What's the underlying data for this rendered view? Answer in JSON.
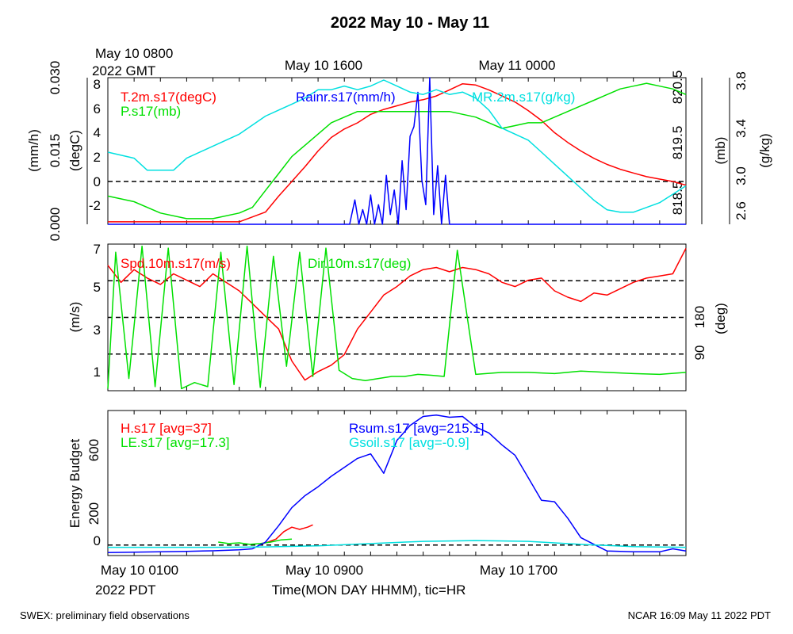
{
  "title": "2022 May 10 - May 11",
  "footer_left": "SWEX: preliminary field observations",
  "footer_right": "NCAR 16:09 May 11 2022 PDT",
  "xaxis": {
    "label": "Time(MON DAY HHMM), tic=HR",
    "bottom_ticks": [
      "May 10 0100",
      "May 10 0900",
      "May 10 1700"
    ],
    "bottom_zone": "2022 PDT",
    "top_ticks": [
      "May 10 0800",
      "May 10 1600",
      "May 11 0000"
    ],
    "top_zone": "2022 GMT",
    "range_hours": [
      0,
      22
    ]
  },
  "chart_data": [
    {
      "type": "line",
      "panel": "meteorology",
      "axes": {
        "left_outer": {
          "label": "(mm/h)",
          "ticks": [
            "0.000",
            "0.015",
            "0.030"
          ],
          "range": [
            0,
            0.03
          ]
        },
        "left_inner": {
          "label": "(degC)",
          "ticks": [
            "-2",
            "0",
            "2",
            "4",
            "6",
            "8"
          ],
          "range": [
            -3.5,
            8.5
          ]
        },
        "right_inner": {
          "label": "(mb)",
          "ticks": [
            "818.5",
            "819.5",
            "820.5"
          ],
          "range": [
            818.1,
            820.7
          ]
        },
        "right_outer": {
          "label": "(g/kg)",
          "ticks": [
            "2.6",
            "3.0",
            "3.4",
            "3.8"
          ],
          "range": [
            2.6,
            3.82
          ]
        }
      },
      "reference_lines": [
        {
          "axis": "left_inner",
          "value": 0
        }
      ],
      "series": [
        {
          "name": "T.2m.s17(degC)",
          "color": "#ff0000",
          "axis": "left_inner",
          "x": [
            0,
            1,
            2,
            3,
            4,
            5,
            6,
            6.5,
            7,
            7.5,
            8,
            8.5,
            9,
            9.5,
            10,
            10.5,
            11,
            11.5,
            12,
            12.5,
            13,
            13.5,
            14,
            14.5,
            15,
            15.5,
            16,
            16.5,
            17,
            17.5,
            18,
            18.5,
            19,
            19.5,
            20,
            20.5,
            21,
            21.5,
            22
          ],
          "y": [
            -3.3,
            -3.3,
            -3.3,
            -3.3,
            -3.3,
            -3.3,
            -2.5,
            -1.2,
            0.0,
            1.2,
            2.5,
            3.6,
            4.3,
            4.8,
            5.5,
            5.9,
            6.2,
            6.5,
            6.7,
            7.0,
            7.5,
            8.0,
            7.9,
            7.5,
            7.0,
            6.5,
            5.8,
            5.0,
            4.0,
            3.2,
            2.5,
            1.9,
            1.4,
            1.0,
            0.7,
            0.4,
            0.2,
            0.0,
            -0.3
          ]
        },
        {
          "name": "P.s17(mb)",
          "color": "#00e000",
          "axis": "right_inner",
          "x": [
            0,
            1,
            2,
            3,
            4,
            5,
            5.5,
            6,
            6.5,
            7,
            7.5,
            8,
            8.5,
            9,
            9.5,
            10,
            10.5,
            11,
            11.5,
            12,
            13,
            14,
            14.5,
            15,
            15.5,
            16,
            16.5,
            17,
            17.5,
            18,
            18.5,
            19,
            19.5,
            20,
            20.5,
            21,
            21.5,
            22
          ],
          "y": [
            818.6,
            818.5,
            818.3,
            818.2,
            818.2,
            818.3,
            818.4,
            818.7,
            819.0,
            819.3,
            819.5,
            819.7,
            819.9,
            820.0,
            820.1,
            820.1,
            820.1,
            820.1,
            820.1,
            820.1,
            820.1,
            820.0,
            819.9,
            819.8,
            819.85,
            819.9,
            819.9,
            820.0,
            820.1,
            820.2,
            820.3,
            820.4,
            820.5,
            820.55,
            820.6,
            820.55,
            820.5,
            820.4
          ]
        },
        {
          "name": "Rainr.s17(mm/h)",
          "color": "#0000ff",
          "axis": "left_outer",
          "x": [
            0,
            9.2,
            9.4,
            9.55,
            9.7,
            9.85,
            10.0,
            10.15,
            10.3,
            10.45,
            10.6,
            10.75,
            10.9,
            11.05,
            11.2,
            11.35,
            11.5,
            11.65,
            11.8,
            11.95,
            12.1,
            12.25,
            12.4,
            12.55,
            12.7,
            12.85,
            13.0,
            13.5,
            22
          ],
          "y": [
            0,
            0,
            0.005,
            0,
            0.003,
            0,
            0.006,
            0,
            0.004,
            0,
            0.01,
            0.002,
            0.007,
            0,
            0.013,
            0.003,
            0.018,
            0.02,
            0.027,
            0.009,
            0.004,
            0.03,
            0.002,
            0.012,
            0,
            0.01,
            0,
            0,
            0
          ]
        },
        {
          "name": "MR.2m.s17(g/kg)",
          "color": "#00e0e0",
          "axis": "right_outer",
          "x": [
            0,
            1,
            1.5,
            2,
            2.5,
            3,
            4,
            5,
            6,
            6.5,
            7,
            7.5,
            8,
            8.5,
            9,
            9.5,
            10,
            10.5,
            11,
            11.5,
            12,
            12.5,
            13,
            13.5,
            14,
            14.5,
            15,
            15.5,
            16,
            16.5,
            17,
            17.5,
            18,
            18.5,
            19,
            19.5,
            20,
            21,
            22
          ],
          "y": [
            3.2,
            3.15,
            3.05,
            3.05,
            3.05,
            3.15,
            3.25,
            3.35,
            3.5,
            3.55,
            3.6,
            3.65,
            3.72,
            3.72,
            3.75,
            3.72,
            3.75,
            3.8,
            3.75,
            3.7,
            3.68,
            3.72,
            3.68,
            3.7,
            3.65,
            3.55,
            3.4,
            3.35,
            3.3,
            3.2,
            3.1,
            3.0,
            2.9,
            2.8,
            2.72,
            2.7,
            2.7,
            2.78,
            2.92
          ]
        }
      ]
    },
    {
      "type": "line",
      "panel": "wind",
      "axes": {
        "left": {
          "label": "(m/s)",
          "ticks": [
            "1",
            "3",
            "5",
            "7"
          ],
          "range": [
            0.1,
            7.0
          ]
        },
        "right": {
          "label": "(deg)",
          "ticks": [
            "90",
            "180"
          ],
          "range": [
            0,
            360
          ]
        }
      },
      "reference_lines": [
        {
          "axis": "right",
          "value": 90
        },
        {
          "axis": "right",
          "value": 180
        },
        {
          "axis": "right",
          "value": 270
        }
      ],
      "series": [
        {
          "name": "Spd.10m.s17(m/s)",
          "color": "#ff0000",
          "axis": "left",
          "x": [
            0,
            0.5,
            1,
            1.5,
            2,
            2.5,
            3,
            3.5,
            4,
            4.5,
            5,
            5.5,
            6,
            6.5,
            7,
            7.5,
            8,
            8.5,
            9,
            9.5,
            10,
            10.5,
            11,
            11.5,
            12,
            12.5,
            13,
            13.5,
            14,
            14.5,
            15,
            15.5,
            16,
            16.5,
            17,
            17.5,
            18,
            18.5,
            19,
            19.5,
            20,
            20.5,
            21,
            21.5,
            22
          ],
          "y": [
            6.0,
            5.2,
            5.8,
            5.4,
            5.1,
            5.6,
            5.3,
            5.0,
            5.6,
            5.2,
            4.8,
            4.2,
            3.6,
            3.0,
            1.5,
            0.6,
            1.0,
            1.3,
            1.8,
            3.0,
            3.8,
            4.6,
            5.0,
            5.5,
            5.8,
            5.9,
            5.7,
            5.9,
            5.8,
            5.6,
            5.2,
            5.0,
            5.3,
            5.4,
            4.8,
            4.5,
            4.3,
            4.7,
            4.6,
            4.9,
            5.2,
            5.4,
            5.5,
            5.6,
            6.8
          ]
        },
        {
          "name": "Dir.10m.s17(deg)",
          "color": "#00e000",
          "axis": "right",
          "x": [
            0,
            0.3,
            0.8,
            1.3,
            1.8,
            2.3,
            2.8,
            3.3,
            3.8,
            4.3,
            4.8,
            5.3,
            5.8,
            6.3,
            6.8,
            7.3,
            7.8,
            8.3,
            8.8,
            9.3,
            9.8,
            10.3,
            10.8,
            11.3,
            11.8,
            12.3,
            12.8,
            13.3,
            14,
            15,
            16,
            17,
            18,
            19,
            20,
            21,
            22
          ],
          "y": [
            5,
            340,
            30,
            355,
            10,
            350,
            5,
            20,
            10,
            340,
            15,
            355,
            8,
            330,
            60,
            340,
            35,
            350,
            50,
            30,
            25,
            30,
            35,
            35,
            40,
            38,
            35,
            345,
            40,
            45,
            45,
            42,
            48,
            45,
            42,
            40,
            45
          ]
        }
      ]
    },
    {
      "type": "line",
      "panel": "energy",
      "axes": {
        "left": {
          "label": "Energy Budget",
          "ticks": [
            "0",
            "200",
            "600"
          ],
          "range": [
            -70,
            900
          ]
        }
      },
      "reference_lines": [
        {
          "axis": "left",
          "value": 0
        }
      ],
      "series": [
        {
          "name": "H.s17 [avg=37]",
          "color": "#ff0000",
          "axis": "left",
          "x": [
            5.8,
            6.1,
            6.4,
            6.7,
            7.0,
            7.3,
            7.6,
            7.8
          ],
          "y": [
            5,
            20,
            40,
            90,
            120,
            105,
            120,
            135
          ]
        },
        {
          "name": "LE.s17 [avg=17.3]",
          "color": "#00e000",
          "axis": "left",
          "x": [
            4.2,
            4.6,
            5.0,
            5.4,
            5.8,
            6.2,
            6.6,
            7.0
          ],
          "y": [
            20,
            10,
            15,
            5,
            10,
            20,
            35,
            40
          ]
        },
        {
          "name": "Rsum.s17 [avg=215.1]",
          "color": "#0000ff",
          "axis": "left",
          "x": [
            0,
            1,
            2,
            3,
            4,
            5,
            5.5,
            6,
            6.5,
            7,
            7.5,
            8,
            8.5,
            9,
            9.5,
            10,
            10.5,
            11,
            11.5,
            12,
            12.5,
            13,
            13.5,
            14,
            14.5,
            15,
            15.5,
            16,
            16.5,
            17,
            17.5,
            18,
            19,
            20,
            21,
            21.5,
            22
          ],
          "y": [
            -50,
            -48,
            -45,
            -42,
            -38,
            -32,
            -25,
            20,
            130,
            250,
            330,
            390,
            460,
            520,
            580,
            610,
            480,
            700,
            800,
            860,
            870,
            855,
            860,
            790,
            750,
            670,
            600,
            450,
            300,
            290,
            180,
            50,
            -40,
            -45,
            -45,
            -25,
            -40
          ]
        },
        {
          "name": "Gsoil.s17 [avg=-0.9]",
          "color": "#00e0e0",
          "axis": "left",
          "x": [
            0,
            2,
            4,
            6,
            8,
            10,
            12,
            14,
            16,
            18,
            20,
            22
          ],
          "y": [
            -15,
            -15,
            -15,
            -12,
            -5,
            10,
            25,
            30,
            25,
            5,
            -10,
            -15
          ]
        }
      ]
    }
  ]
}
